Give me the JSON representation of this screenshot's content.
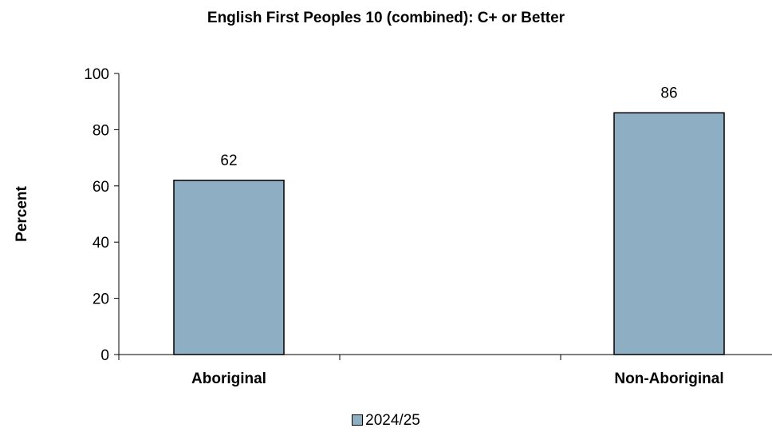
{
  "chart_data": {
    "type": "bar",
    "title": "English First Peoples 10 (combined): C+ or Better",
    "xlabel": "",
    "ylabel": "Percent",
    "categories": [
      "Aboriginal",
      "Non-Aboriginal"
    ],
    "series": [
      {
        "name": "2024/25",
        "values": [
          62,
          86
        ],
        "color": "#8eaec4"
      }
    ],
    "data_labels": [
      "62",
      "86"
    ],
    "ylim": [
      0,
      100
    ],
    "yticks": [
      0,
      20,
      40,
      60,
      80,
      100
    ],
    "grid": false,
    "legend_position": "bottom"
  }
}
